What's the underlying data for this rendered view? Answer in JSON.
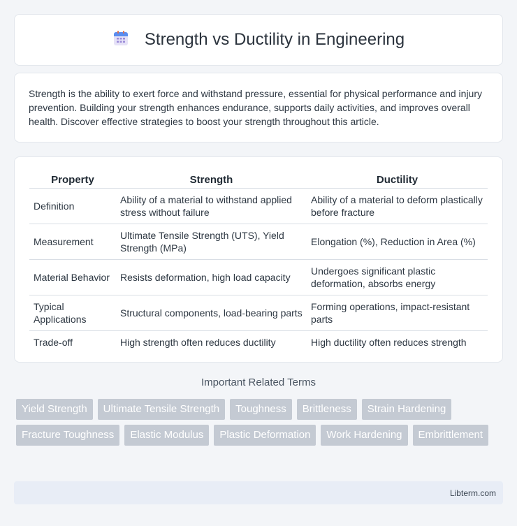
{
  "header": {
    "icon": "calendar-icon",
    "title": "Strength vs Ductility in Engineering"
  },
  "intro": {
    "text": "Strength is the ability to exert force and withstand pressure, essential for physical performance and injury prevention. Building your strength enhances endurance, supports daily activities, and improves overall health. Discover effective strategies to boost your strength throughout this article."
  },
  "table": {
    "headers": [
      "Property",
      "Strength",
      "Ductility"
    ],
    "rows": [
      [
        "Definition",
        "Ability of a material to withstand applied stress without failure",
        "Ability of a material to deform plastically before fracture"
      ],
      [
        "Measurement",
        "Ultimate Tensile Strength (UTS), Yield Strength (MPa)",
        "Elongation (%), Reduction in Area (%)"
      ],
      [
        "Material Behavior",
        "Resists deformation, high load capacity",
        "Undergoes significant plastic deformation, absorbs energy"
      ],
      [
        "Typical Applications",
        "Structural components, load-bearing parts",
        "Forming operations, impact-resistant parts"
      ],
      [
        "Trade-off",
        "High strength often reduces ductility",
        "High ductility often reduces strength"
      ]
    ]
  },
  "related": {
    "title": "Important Related Terms",
    "tags": [
      "Yield Strength",
      "Ultimate Tensile Strength",
      "Toughness",
      "Brittleness",
      "Strain Hardening",
      "Fracture Toughness",
      "Elastic Modulus",
      "Plastic Deformation",
      "Work Hardening",
      "Embrittlement"
    ]
  },
  "footer": {
    "text": "Libterm.com"
  }
}
